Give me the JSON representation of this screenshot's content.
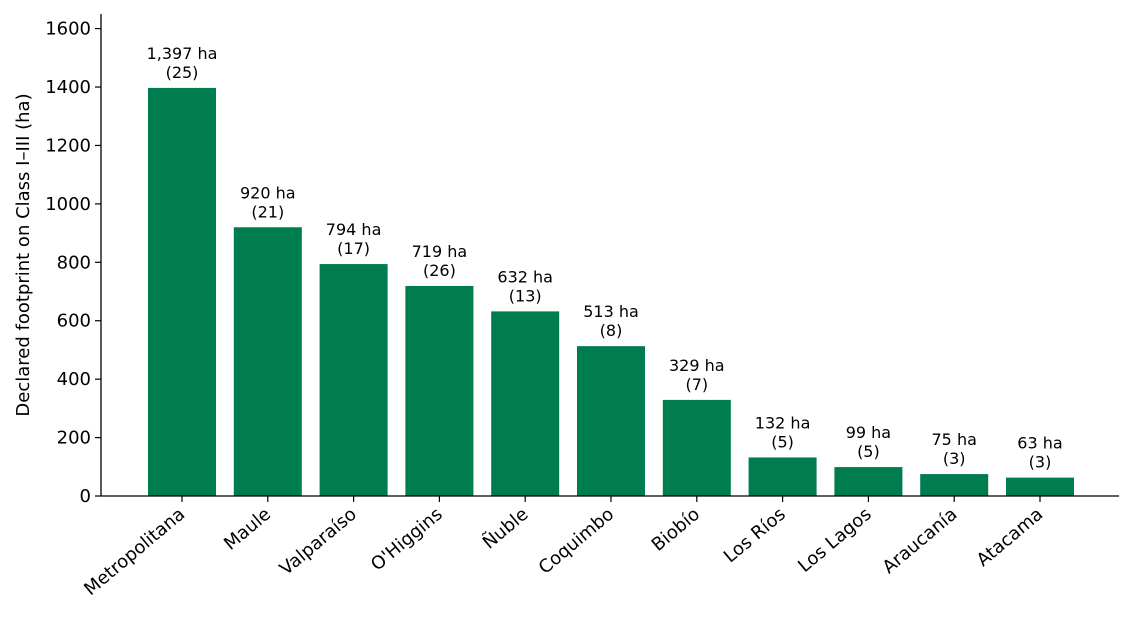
{
  "chart_data": {
    "type": "bar",
    "title": "",
    "xlabel": "",
    "ylabel": "Declared footprint on Class I–III (ha)",
    "ylim": [
      0,
      1650
    ],
    "yticks": [
      0,
      200,
      400,
      600,
      800,
      1000,
      1200,
      1400,
      1600
    ],
    "grid": false,
    "legend": "none",
    "bar_color": "#007D4F",
    "categories": [
      "Metropolitana",
      "Maule",
      "Valparaíso",
      "O'Higgins",
      "Ñuble",
      "Coquimbo",
      "Biobío",
      "Los Ríos",
      "Los Lagos",
      "Araucanía",
      "Atacama"
    ],
    "values": [
      1397,
      920,
      794,
      719,
      632,
      513,
      329,
      132,
      99,
      75,
      63
    ],
    "value_labels": [
      "1,397 ha",
      "920 ha",
      "794 ha",
      "719 ha",
      "632 ha",
      "513 ha",
      "329 ha",
      "132 ha",
      "99 ha",
      "75 ha",
      "63 ha"
    ],
    "count_labels": [
      "(25)",
      "(21)",
      "(17)",
      "(26)",
      "(13)",
      "(8)",
      "(7)",
      "(5)",
      "(5)",
      "(3)",
      "(3)"
    ]
  }
}
